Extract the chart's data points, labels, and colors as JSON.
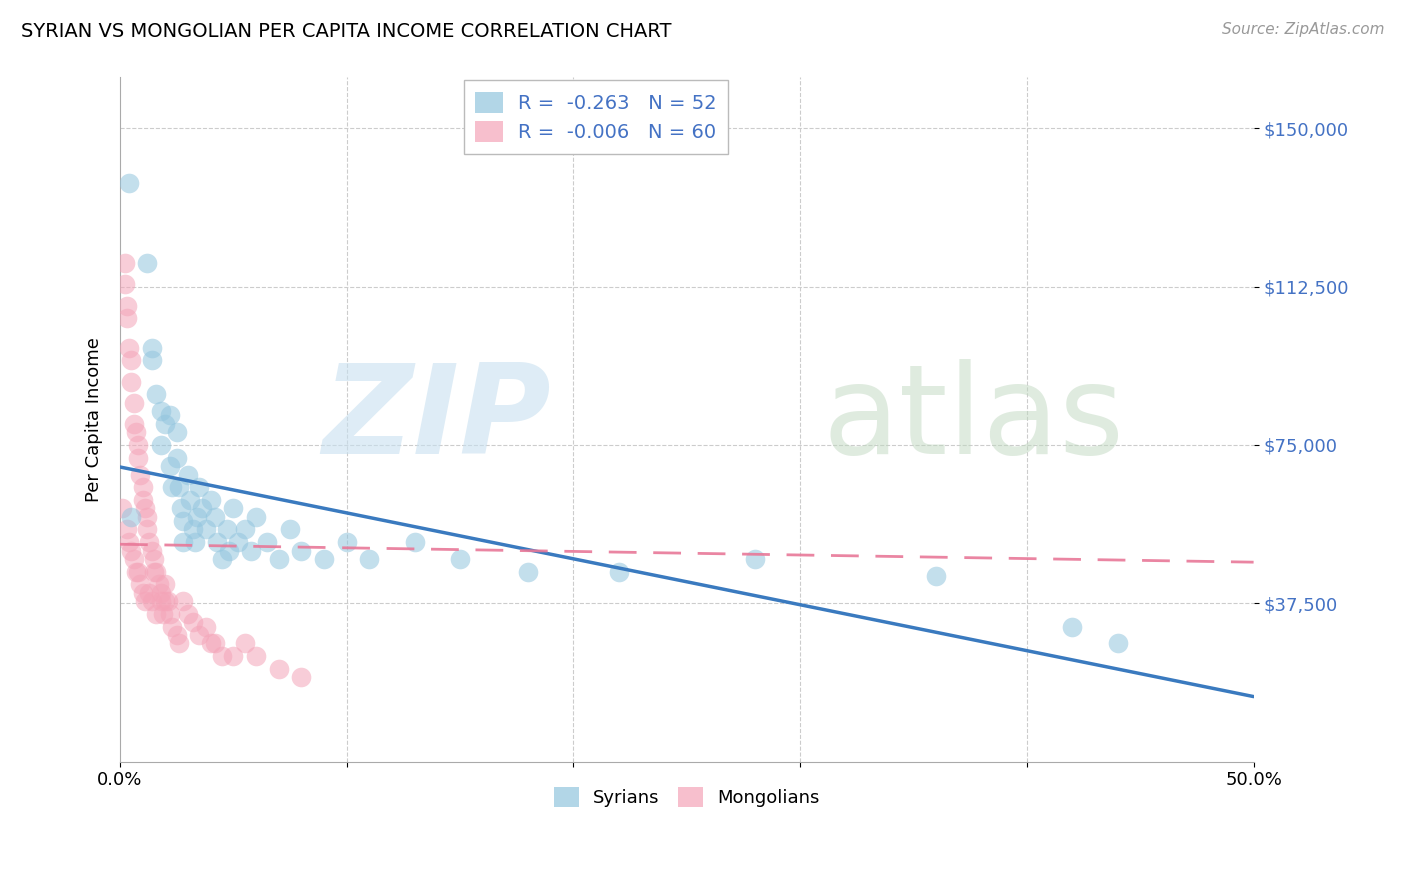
{
  "title": "SYRIAN VS MONGOLIAN PER CAPITA INCOME CORRELATION CHART",
  "source": "Source: ZipAtlas.com",
  "ylabel": "Per Capita Income",
  "xlim": [
    0.0,
    0.5
  ],
  "ylim": [
    0,
    162000
  ],
  "syrians_R": "-0.263",
  "syrians_N": "52",
  "mongolians_R": "-0.006",
  "mongolians_N": "60",
  "syrian_color": "#92c5de",
  "mongolian_color": "#f4a4b8",
  "syrian_line_color": "#3a7abf",
  "mongolian_line_color": "#e87898",
  "background_color": "#ffffff",
  "ytick_vals": [
    37500,
    75000,
    112500,
    150000
  ],
  "ytick_labels": [
    "$37,500",
    "$75,000",
    "$112,500",
    "$150,000"
  ],
  "syrians_x": [
    0.004,
    0.005,
    0.012,
    0.014,
    0.014,
    0.016,
    0.018,
    0.018,
    0.02,
    0.022,
    0.022,
    0.023,
    0.025,
    0.025,
    0.026,
    0.027,
    0.028,
    0.028,
    0.03,
    0.031,
    0.032,
    0.033,
    0.034,
    0.035,
    0.036,
    0.038,
    0.04,
    0.042,
    0.043,
    0.045,
    0.047,
    0.048,
    0.05,
    0.052,
    0.055,
    0.058,
    0.06,
    0.065,
    0.07,
    0.075,
    0.08,
    0.09,
    0.1,
    0.11,
    0.13,
    0.15,
    0.18,
    0.22,
    0.28,
    0.36,
    0.42,
    0.44
  ],
  "syrians_y": [
    137000,
    58000,
    118000,
    95000,
    98000,
    87000,
    83000,
    75000,
    80000,
    82000,
    70000,
    65000,
    78000,
    72000,
    65000,
    60000,
    57000,
    52000,
    68000,
    62000,
    55000,
    52000,
    58000,
    65000,
    60000,
    55000,
    62000,
    58000,
    52000,
    48000,
    55000,
    50000,
    60000,
    52000,
    55000,
    50000,
    58000,
    52000,
    48000,
    55000,
    50000,
    48000,
    52000,
    48000,
    52000,
    48000,
    45000,
    45000,
    48000,
    44000,
    32000,
    28000
  ],
  "mongolians_x": [
    0.001,
    0.002,
    0.002,
    0.003,
    0.003,
    0.003,
    0.004,
    0.004,
    0.005,
    0.005,
    0.005,
    0.006,
    0.006,
    0.006,
    0.007,
    0.007,
    0.008,
    0.008,
    0.008,
    0.009,
    0.009,
    0.01,
    0.01,
    0.01,
    0.011,
    0.011,
    0.012,
    0.012,
    0.013,
    0.013,
    0.014,
    0.014,
    0.015,
    0.015,
    0.016,
    0.016,
    0.017,
    0.018,
    0.018,
    0.019,
    0.02,
    0.02,
    0.021,
    0.022,
    0.023,
    0.025,
    0.026,
    0.028,
    0.03,
    0.032,
    0.035,
    0.038,
    0.04,
    0.042,
    0.045,
    0.05,
    0.055,
    0.06,
    0.07,
    0.08
  ],
  "mongolians_y": [
    60000,
    118000,
    113000,
    108000,
    105000,
    55000,
    98000,
    52000,
    95000,
    90000,
    50000,
    85000,
    80000,
    48000,
    78000,
    45000,
    75000,
    72000,
    45000,
    68000,
    42000,
    65000,
    62000,
    40000,
    60000,
    38000,
    58000,
    55000,
    52000,
    40000,
    50000,
    38000,
    48000,
    45000,
    45000,
    35000,
    42000,
    40000,
    38000,
    35000,
    42000,
    38000,
    38000,
    35000,
    32000,
    30000,
    28000,
    38000,
    35000,
    33000,
    30000,
    32000,
    28000,
    28000,
    25000,
    25000,
    28000,
    25000,
    22000,
    20000
  ]
}
